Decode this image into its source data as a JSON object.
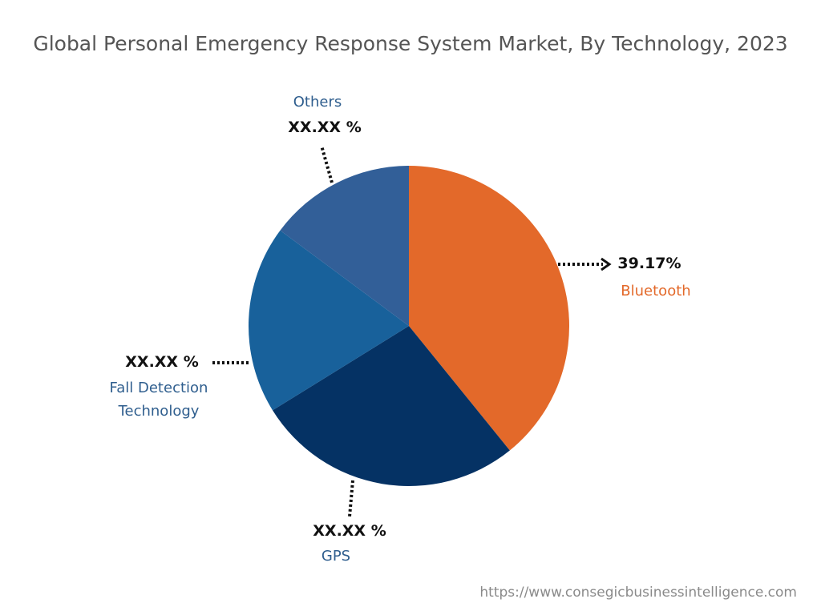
{
  "chart_data": {
    "type": "pie",
    "title": "Global Personal Emergency Response System Market, By Technology, 2023",
    "categories": [
      "Bluetooth",
      "GPS",
      "Fall Detection Technology",
      "Others"
    ],
    "values": [
      39.17,
      27,
      19,
      14.83
    ],
    "value_labels": [
      "39.17%",
      "XX.XX %",
      "XX.XX %",
      "XX.XX %"
    ],
    "colors": [
      "#e3692a",
      "#053264",
      "#18619b",
      "#325f98"
    ],
    "source": "https://www.consegicbusinessintelligence.com"
  }
}
